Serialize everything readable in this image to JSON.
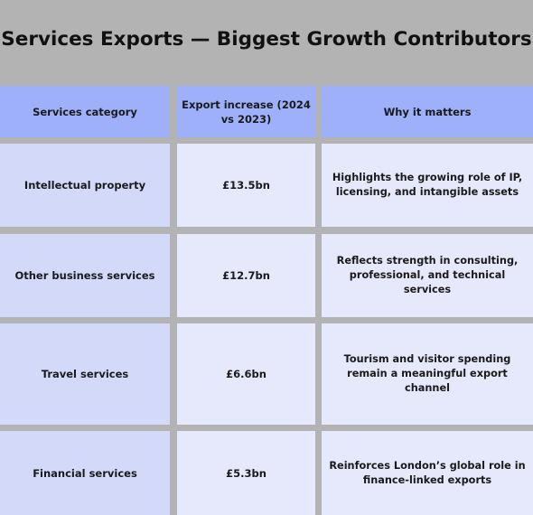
{
  "title": "Services Exports — Biggest Growth Contributors",
  "colors": {
    "background": "#b3b3b3",
    "header": "#9fb0fb",
    "first_column": "#d3daf9",
    "cells": "#e6e9fb"
  },
  "table": {
    "headers": [
      "Services category",
      "Export increase (2024 vs 2023)",
      "Why it matters"
    ],
    "rows": [
      [
        "Intellectual property",
        "£13.5bn",
        "Highlights the growing role of IP, licensing, and intangible assets"
      ],
      [
        "Other business services",
        "£12.7bn",
        "Reflects strength in consulting, professional, and technical services"
      ],
      [
        "Travel services",
        "£6.6bn",
        "Tourism and visitor spending remain a meaningful export channel"
      ],
      [
        "Financial services",
        "£5.3bn",
        "Reinforces London’s global role in finance-linked exports"
      ]
    ]
  }
}
